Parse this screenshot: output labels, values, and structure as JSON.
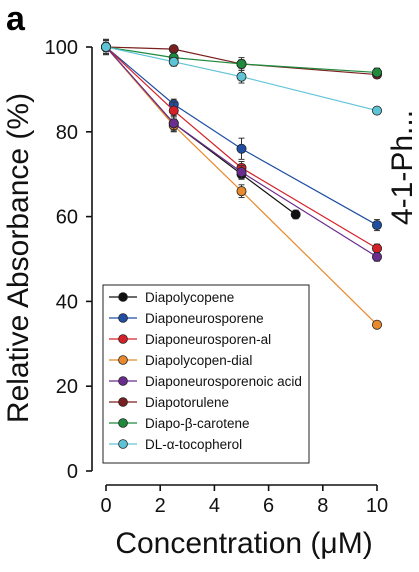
{
  "panel_label": "a",
  "cropped_right_text": "4-1-Ph...",
  "chart_data": {
    "type": "line",
    "xlabel": "Concentration (μM)",
    "ylabel": "Relative Absorbance (%)",
    "xlim": [
      0,
      10
    ],
    "ylim": [
      0,
      100
    ],
    "xticks": [
      0,
      2,
      4,
      6,
      8,
      10
    ],
    "yticks": [
      0,
      20,
      40,
      60,
      80,
      100
    ],
    "grid": false,
    "legend_position": "bottom-left",
    "series": [
      {
        "name": "Diapolycopene",
        "color": "#111111",
        "x": [
          0,
          2.5,
          5,
          7
        ],
        "y": [
          100,
          82,
          70,
          60.5
        ],
        "err": [
          1.8,
          1.8,
          1.2,
          1.0
        ]
      },
      {
        "name": "Diaponeurosporene",
        "color": "#1f4ea3",
        "x": [
          0,
          2.5,
          5,
          10
        ],
        "y": [
          100,
          86.5,
          76,
          58
        ],
        "err": [
          1.8,
          1.2,
          2.5,
          1.3
        ]
      },
      {
        "name": "Diaponeurosporen-al",
        "color": "#d62027",
        "x": [
          0,
          2.5,
          5,
          10
        ],
        "y": [
          100,
          85,
          71.5,
          52.5
        ],
        "err": [
          1.5,
          2.0,
          1.5,
          1.0
        ]
      },
      {
        "name": "Diapolycopen-dial",
        "color": "#e8892b",
        "x": [
          0,
          2.5,
          5,
          10
        ],
        "y": [
          100,
          81.5,
          66,
          34.5
        ],
        "err": [
          1.5,
          1.5,
          1.5,
          0.7
        ]
      },
      {
        "name": "Diaponeurosporenoic acid",
        "color": "#6b2c8f",
        "x": [
          0,
          2.5,
          5,
          10
        ],
        "y": [
          100,
          82,
          70.5,
          50.5
        ],
        "err": [
          1.5,
          1.5,
          1.5,
          1.0
        ]
      },
      {
        "name": "Diapotorulene",
        "color": "#7a1f1f",
        "x": [
          0,
          2.5,
          5,
          10
        ],
        "y": [
          100,
          99.5,
          96,
          93.5
        ],
        "err": [
          1.0,
          0.8,
          1.0,
          0.8
        ]
      },
      {
        "name": "Diapo-β-carotene",
        "color": "#1e8a3c",
        "x": [
          0,
          2.5,
          5,
          10
        ],
        "y": [
          100,
          97.5,
          96,
          94
        ],
        "err": [
          1.0,
          1.2,
          1.5,
          1.0
        ]
      },
      {
        "name": "DL-α-tocopherol",
        "color": "#5fc3d6",
        "x": [
          0,
          2.5,
          5,
          10
        ],
        "y": [
          100,
          96.5,
          93,
          85
        ],
        "err": [
          1.0,
          1.0,
          1.5,
          0.7
        ]
      }
    ]
  }
}
